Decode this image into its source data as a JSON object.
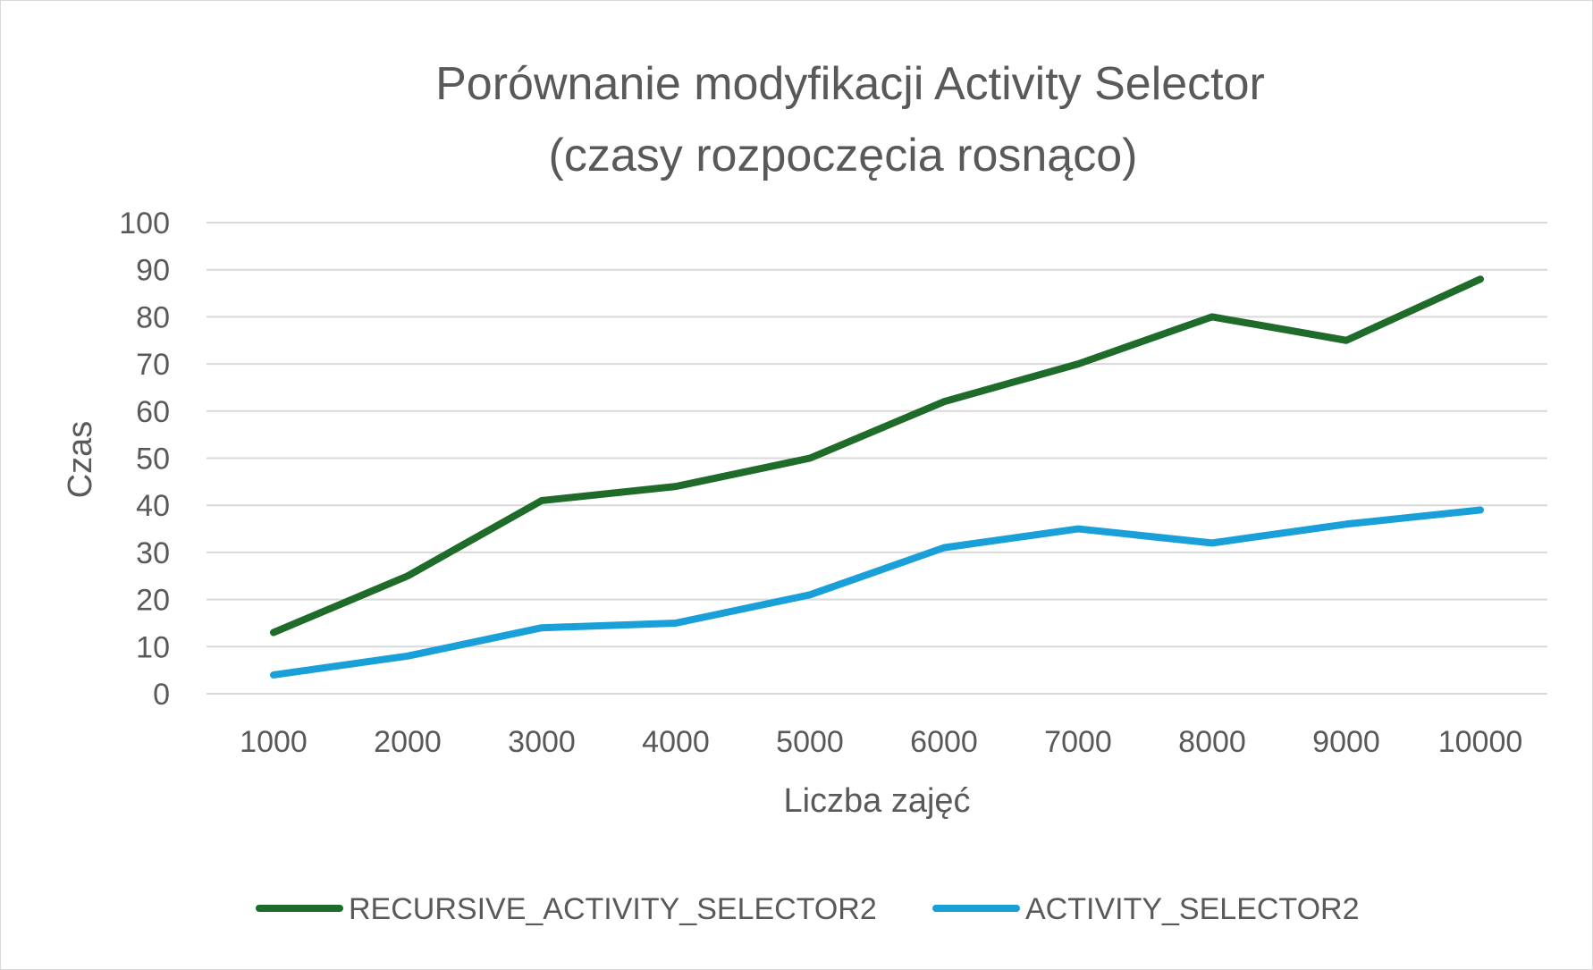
{
  "chart_data": {
    "type": "line",
    "title": [
      "Porównanie modyfikacji Activity Selector",
      "(czasy rozpoczęcia rosnąco)"
    ],
    "xlabel": "Liczba zajęć",
    "ylabel": "Czas",
    "categories": [
      "1000",
      "2000",
      "3000",
      "4000",
      "5000",
      "6000",
      "7000",
      "8000",
      "9000",
      "10000"
    ],
    "ylim": [
      0,
      100
    ],
    "yticks": [
      0,
      10,
      20,
      30,
      40,
      50,
      60,
      70,
      80,
      90,
      100
    ],
    "grid": true,
    "legend_position": "bottom",
    "series": [
      {
        "name": "RECURSIVE_ACTIVITY_SELECTOR2",
        "color": "#1e6b2a",
        "values": [
          13,
          25,
          41,
          44,
          50,
          62,
          70,
          80,
          75,
          88
        ]
      },
      {
        "name": "ACTIVITY_SELECTOR2",
        "color": "#1aa0d8",
        "values": [
          4,
          8,
          14,
          15,
          21,
          31,
          35,
          32,
          36,
          39
        ]
      }
    ]
  }
}
